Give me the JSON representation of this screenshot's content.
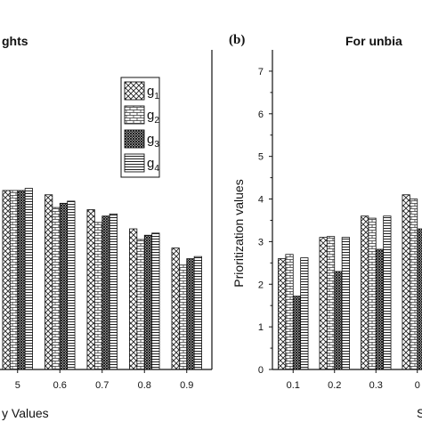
{
  "chart_data": [
    {
      "type": "bar",
      "panel": "",
      "title": "ghts",
      "xlabel": "y Values",
      "ylabel": "",
      "categories": [
        "5",
        "0.6",
        "0.7",
        "0.8",
        "0.9"
      ],
      "series": [
        {
          "name": "g1",
          "values": [
            4.2,
            4.1,
            3.75,
            3.3,
            2.85
          ]
        },
        {
          "name": "g2",
          "values": [
            4.2,
            3.8,
            3.45,
            3.05,
            2.45
          ]
        },
        {
          "name": "g3",
          "values": [
            4.2,
            3.9,
            3.6,
            3.15,
            2.6
          ]
        },
        {
          "name": "g4",
          "values": [
            4.25,
            3.95,
            3.65,
            3.2,
            2.65
          ]
        }
      ],
      "ylim": [
        0,
        7.5
      ],
      "legend": {
        "position": "top-right",
        "entries": [
          {
            "base": "g",
            "sub": "1"
          },
          {
            "base": "g",
            "sub": "2"
          },
          {
            "base": "g",
            "sub": "3"
          },
          {
            "base": "g",
            "sub": "4"
          }
        ]
      }
    },
    {
      "type": "bar",
      "panel": "(b)",
      "title": "For unbia",
      "xlabel": "S",
      "ylabel": "Prioritization values",
      "categories": [
        "0.1",
        "0.2",
        "0.3",
        "0"
      ],
      "series": [
        {
          "name": "g1",
          "values": [
            2.6,
            3.1,
            3.6,
            4.1
          ]
        },
        {
          "name": "g2",
          "values": [
            2.7,
            3.12,
            3.55,
            4.0
          ]
        },
        {
          "name": "g3",
          "values": [
            1.72,
            2.3,
            2.82,
            3.3
          ]
        },
        {
          "name": "g4",
          "values": [
            2.62,
            3.1,
            3.6,
            4.1
          ]
        }
      ],
      "yticks": [
        "0",
        "1",
        "2",
        "3",
        "4",
        "5",
        "6",
        "7"
      ],
      "ylim": [
        0,
        7.5
      ]
    }
  ],
  "patterns": [
    "crosshatch",
    "brick",
    "dense-cross",
    "horizontal-lines"
  ]
}
